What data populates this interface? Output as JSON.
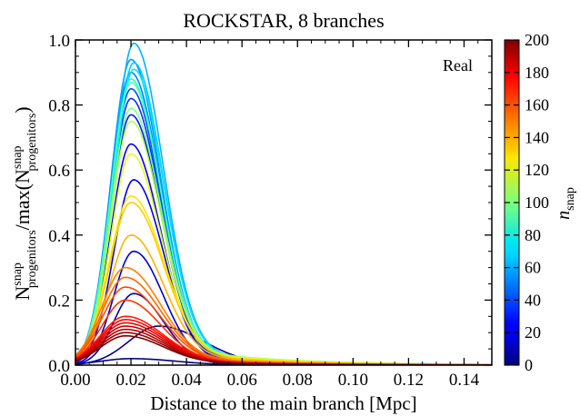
{
  "chart_data": {
    "type": "line",
    "title": "ROCKSTAR, 8 branches",
    "xlabel": "Distance to the main branch [Mpc]",
    "ylabel": {
      "main_left": "N",
      "sup_left": "snap",
      "sub_left": "progenitors",
      "middle": "/max(N",
      "sup_right": "snap",
      "sub_right": "progenitors",
      "end": ")"
    },
    "annotation": "Real",
    "xlim": [
      0.0,
      0.15
    ],
    "ylim": [
      0.0,
      1.0
    ],
    "xticks": [
      "0.00",
      "0.02",
      "0.04",
      "0.06",
      "0.08",
      "0.10",
      "0.12",
      "0.14"
    ],
    "yticks": [
      "0.0",
      "0.2",
      "0.4",
      "0.6",
      "0.8",
      "1.0"
    ],
    "grid": false,
    "colormap": "jet",
    "colorbar": {
      "label_main": "n",
      "label_sub": "snap",
      "range": [
        0,
        200
      ],
      "ticks": [
        "0",
        "20",
        "40",
        "60",
        "80",
        "100",
        "120",
        "140",
        "160",
        "180",
        "200"
      ]
    },
    "series": [
      {
        "snap": 2,
        "peak": 0.02,
        "xpeak": 0.02,
        "width": 0.018
      },
      {
        "snap": 5,
        "peak": 0.12,
        "xpeak": 0.03,
        "width": 0.018
      },
      {
        "snap": 10,
        "peak": 0.22,
        "xpeak": 0.021,
        "width": 0.012
      },
      {
        "snap": 15,
        "peak": 0.35,
        "xpeak": 0.021,
        "width": 0.012
      },
      {
        "snap": 20,
        "peak": 0.57,
        "xpeak": 0.021,
        "width": 0.012
      },
      {
        "snap": 25,
        "peak": 0.68,
        "xpeak": 0.02,
        "width": 0.012
      },
      {
        "snap": 30,
        "peak": 0.77,
        "xpeak": 0.02,
        "width": 0.012
      },
      {
        "snap": 35,
        "peak": 0.82,
        "xpeak": 0.02,
        "width": 0.012
      },
      {
        "snap": 40,
        "peak": 0.85,
        "xpeak": 0.02,
        "width": 0.012
      },
      {
        "snap": 50,
        "peak": 0.9,
        "xpeak": 0.02,
        "width": 0.012
      },
      {
        "snap": 55,
        "peak": 0.94,
        "xpeak": 0.02,
        "width": 0.012
      },
      {
        "snap": 60,
        "peak": 0.99,
        "xpeak": 0.021,
        "width": 0.012
      },
      {
        "snap": 65,
        "peak": 0.93,
        "xpeak": 0.021,
        "width": 0.012
      },
      {
        "snap": 70,
        "peak": 0.91,
        "xpeak": 0.021,
        "width": 0.012
      },
      {
        "snap": 80,
        "peak": 0.88,
        "xpeak": 0.02,
        "width": 0.012
      },
      {
        "snap": 90,
        "peak": 0.87,
        "xpeak": 0.02,
        "width": 0.012
      },
      {
        "snap": 100,
        "peak": 0.79,
        "xpeak": 0.02,
        "width": 0.012
      },
      {
        "snap": 110,
        "peak": 0.75,
        "xpeak": 0.02,
        "width": 0.012
      },
      {
        "snap": 120,
        "peak": 0.65,
        "xpeak": 0.02,
        "width": 0.012
      },
      {
        "snap": 130,
        "peak": 0.52,
        "xpeak": 0.02,
        "width": 0.013
      },
      {
        "snap": 135,
        "peak": 0.5,
        "xpeak": 0.02,
        "width": 0.013
      },
      {
        "snap": 140,
        "peak": 0.4,
        "xpeak": 0.02,
        "width": 0.013
      },
      {
        "snap": 150,
        "peak": 0.3,
        "xpeak": 0.018,
        "width": 0.014
      },
      {
        "snap": 155,
        "peak": 0.27,
        "xpeak": 0.018,
        "width": 0.014
      },
      {
        "snap": 160,
        "peak": 0.24,
        "xpeak": 0.018,
        "width": 0.014
      },
      {
        "snap": 165,
        "peak": 0.2,
        "xpeak": 0.018,
        "width": 0.014
      },
      {
        "snap": 170,
        "peak": 0.15,
        "xpeak": 0.018,
        "width": 0.015
      },
      {
        "snap": 175,
        "peak": 0.14,
        "xpeak": 0.018,
        "width": 0.015
      },
      {
        "snap": 180,
        "peak": 0.13,
        "xpeak": 0.018,
        "width": 0.015
      },
      {
        "snap": 185,
        "peak": 0.12,
        "xpeak": 0.018,
        "width": 0.015
      },
      {
        "snap": 190,
        "peak": 0.11,
        "xpeak": 0.018,
        "width": 0.015
      },
      {
        "snap": 195,
        "peak": 0.1,
        "xpeak": 0.018,
        "width": 0.015
      },
      {
        "snap": 200,
        "peak": 0.09,
        "xpeak": 0.018,
        "width": 0.015
      }
    ]
  }
}
